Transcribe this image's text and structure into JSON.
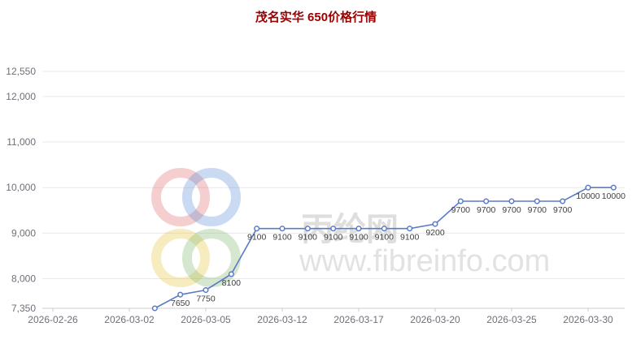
{
  "chart_data": {
    "type": "line",
    "title": "茂名实华 650价格行情",
    "title_color": "#9a0000",
    "xlabel": "",
    "ylabel": "",
    "grid": true,
    "legend": "none",
    "ylim": [
      7350,
      12550
    ],
    "y_tick_values": [
      7350,
      8000,
      9000,
      10000,
      11000,
      12000,
      12550
    ],
    "y_tick_labels": [
      "7,350",
      "8,000",
      "9,000",
      "10,000",
      "11,000",
      "12,000",
      "12,550"
    ],
    "x_tick_labels": [
      "2026-02-26",
      "2026-03-02",
      "2026-03-05",
      "2026-03-12",
      "2026-03-17",
      "2026-03-20",
      "2026-03-25",
      "2026-03-30"
    ],
    "series": [
      {
        "name": "茂名实华 650",
        "color": "#5b7bc8",
        "values": [
          7350,
          7650,
          7750,
          8100,
          9100,
          9100,
          9100,
          9100,
          9100,
          9100,
          9100,
          9200,
          9700,
          9700,
          9700,
          9700,
          9700,
          10000,
          10000
        ],
        "point_labels": [
          "",
          "7650",
          "7750",
          "8100",
          "9100",
          "9100",
          "9100",
          "9100",
          "9100",
          "9100",
          "9100",
          "9200",
          "9700",
          "9700",
          "9700",
          "9700",
          "9700",
          "10000",
          "10000"
        ]
      }
    ]
  },
  "watermark": {
    "site_name": "丙纶网",
    "site_url": "www.fibreinfo.com",
    "ring_colors": [
      "#e06a6a",
      "#5b8bd8",
      "#e7c23c",
      "#7bb86b"
    ]
  }
}
